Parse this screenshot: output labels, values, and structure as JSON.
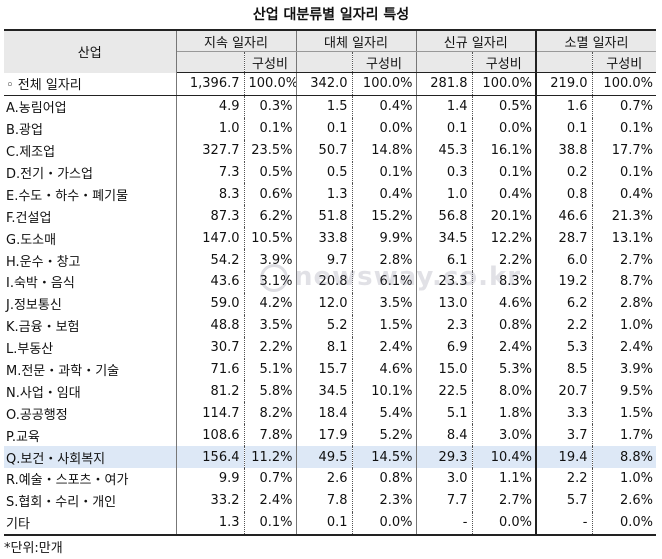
{
  "title": "산업 대분류별 일자리 특성",
  "columns": {
    "industry": "산업",
    "groups": [
      "지속 일자리",
      "대체 일자리",
      "신규 일자리",
      "소멸 일자리"
    ],
    "share": "구성비"
  },
  "rows": [
    {
      "name": "◦ 전체 일자리",
      "v": [
        "1,396.7",
        "100.0%",
        "342.0",
        "100.0%",
        "281.8",
        "100.0%",
        "219.0",
        "100.0%"
      ]
    },
    {
      "name": "A.농림어업",
      "v": [
        "4.9",
        "0.3%",
        "1.5",
        "0.4%",
        "1.4",
        "0.5%",
        "1.6",
        "0.7%"
      ]
    },
    {
      "name": "B.광업",
      "v": [
        "1.0",
        "0.1%",
        "0.1",
        "0.0%",
        "0.1",
        "0.0%",
        "0.1",
        "0.1%"
      ]
    },
    {
      "name": "C.제조업",
      "v": [
        "327.7",
        "23.5%",
        "50.7",
        "14.8%",
        "45.3",
        "16.1%",
        "38.8",
        "17.7%"
      ]
    },
    {
      "name": "D.전기・가스업",
      "v": [
        "7.3",
        "0.5%",
        "0.5",
        "0.1%",
        "0.3",
        "0.1%",
        "0.2",
        "0.1%"
      ]
    },
    {
      "name": "E.수도・하수・폐기물",
      "v": [
        "8.3",
        "0.6%",
        "1.3",
        "0.4%",
        "1.0",
        "0.4%",
        "0.8",
        "0.4%"
      ]
    },
    {
      "name": "F.건설업",
      "v": [
        "87.3",
        "6.2%",
        "51.8",
        "15.2%",
        "56.8",
        "20.1%",
        "46.6",
        "21.3%"
      ]
    },
    {
      "name": "G.도소매",
      "v": [
        "147.0",
        "10.5%",
        "33.8",
        "9.9%",
        "34.5",
        "12.2%",
        "28.7",
        "13.1%"
      ]
    },
    {
      "name": "H.운수・창고",
      "v": [
        "54.2",
        "3.9%",
        "9.7",
        "2.8%",
        "6.1",
        "2.2%",
        "6.0",
        "2.7%"
      ]
    },
    {
      "name": "I.숙박・음식",
      "v": [
        "43.6",
        "3.1%",
        "20.8",
        "6.1%",
        "23.3",
        "8.3%",
        "19.2",
        "8.7%"
      ]
    },
    {
      "name": "J.정보통신",
      "v": [
        "59.0",
        "4.2%",
        "12.0",
        "3.5%",
        "13.0",
        "4.6%",
        "6.2",
        "2.8%"
      ]
    },
    {
      "name": "K.금융・보험",
      "v": [
        "48.8",
        "3.5%",
        "5.2",
        "1.5%",
        "2.3",
        "0.8%",
        "2.2",
        "1.0%"
      ]
    },
    {
      "name": "L.부동산",
      "v": [
        "30.7",
        "2.2%",
        "8.1",
        "2.4%",
        "6.9",
        "2.4%",
        "5.3",
        "2.4%"
      ]
    },
    {
      "name": "M.전문・과학・기술",
      "v": [
        "71.6",
        "5.1%",
        "15.7",
        "4.6%",
        "15.0",
        "5.3%",
        "8.5",
        "3.9%"
      ]
    },
    {
      "name": "N.사업・임대",
      "v": [
        "81.2",
        "5.8%",
        "34.5",
        "10.1%",
        "22.5",
        "8.0%",
        "20.7",
        "9.5%"
      ]
    },
    {
      "name": "O.공공행정",
      "v": [
        "114.7",
        "8.2%",
        "18.4",
        "5.4%",
        "5.1",
        "1.8%",
        "3.3",
        "1.5%"
      ]
    },
    {
      "name": "P.교육",
      "v": [
        "108.6",
        "7.8%",
        "17.9",
        "5.2%",
        "8.4",
        "3.0%",
        "3.7",
        "1.7%"
      ]
    },
    {
      "name": "Q.보건・사회복지",
      "v": [
        "156.4",
        "11.2%",
        "49.5",
        "14.5%",
        "29.3",
        "10.4%",
        "19.4",
        "8.8%"
      ]
    },
    {
      "name": "R.예술・스포츠・여가",
      "v": [
        "9.9",
        "0.7%",
        "2.6",
        "0.8%",
        "3.0",
        "1.1%",
        "2.2",
        "1.0%"
      ]
    },
    {
      "name": "S.협회・수리・개인",
      "v": [
        "33.2",
        "2.4%",
        "7.8",
        "2.3%",
        "7.7",
        "2.7%",
        "5.7",
        "2.6%"
      ]
    },
    {
      "name": "기타",
      "v": [
        "1.3",
        "0.1%",
        "0.1",
        "0.0%",
        "-",
        "0.0%",
        "-",
        "0.0%"
      ]
    }
  ],
  "note": "*단위:만개",
  "watermark": "newsway.co.kr",
  "highlight_color": "#dde8f6"
}
